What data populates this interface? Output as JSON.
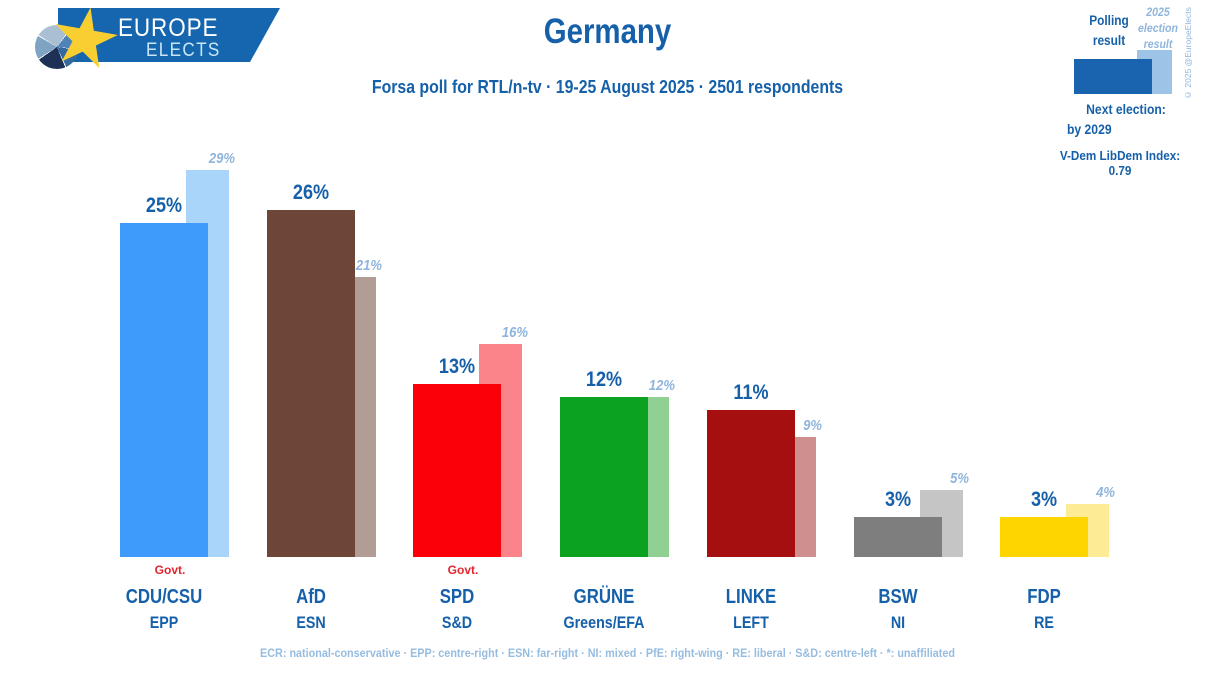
{
  "header": {
    "logo": {
      "line1": "EUROPE",
      "line2": "ELECTS"
    },
    "title": "Germany",
    "subtitle": "Forsa poll for RTL/n-tv · 19-25 August 2025 · 2501 respondents"
  },
  "legend": {
    "polling_label": "Polling result",
    "election_label": "2025 election result",
    "copyright": "© 2025 @EuropeElects",
    "next_election_label": "Next election:",
    "next_election_value": "by 2029",
    "vdem": "V-Dem LibDem Index: 0.79",
    "polling_color": "#1a63ae",
    "election_color": "#9dc4e6"
  },
  "chart_data": {
    "type": "bar",
    "title": "Germany",
    "subtitle": "Forsa poll for RTL/n-tv · 19-25 August 2025 · 2501 respondents",
    "unit": "%",
    "ylim": [
      0,
      29
    ],
    "grid": false,
    "legend_position": "top-right",
    "govt_label": "Govt.",
    "categories": [
      "CDU/CSU",
      "AfD",
      "SPD",
      "GRÜNE",
      "LINKE",
      "BSW",
      "FDP"
    ],
    "series": [
      {
        "name": "Polling result",
        "values": [
          25,
          26,
          13,
          12,
          11,
          3,
          3
        ]
      },
      {
        "name": "2025 election result",
        "values": [
          29,
          21,
          16,
          12,
          9,
          5,
          4
        ]
      }
    ],
    "groups": [
      {
        "party": "CDU/CSU",
        "eu_group": "EPP",
        "govt": true,
        "poll": 25,
        "election": 29,
        "poll_display": "25%",
        "election_display": "29%",
        "bar_color": "#3e9bfb",
        "election_bar_color": "#aad5fb"
      },
      {
        "party": "AfD",
        "eu_group": "ESN",
        "govt": false,
        "poll": 26,
        "election": 21,
        "poll_display": "26%",
        "election_display": "21%",
        "bar_color": "#6e4638",
        "election_bar_color": "#b29d95"
      },
      {
        "party": "SPD",
        "eu_group": "S&D",
        "govt": true,
        "poll": 13,
        "election": 16,
        "poll_display": "13%",
        "election_display": "16%",
        "bar_color": "#fb0009",
        "election_bar_color": "#fb838a"
      },
      {
        "party": "GRÜNE",
        "eu_group": "Greens/EFA",
        "govt": false,
        "poll": 12,
        "election": 12,
        "poll_display": "12%",
        "election_display": "12%",
        "bar_color": "#0ba121",
        "election_bar_color": "#90d092"
      },
      {
        "party": "LINKE",
        "eu_group": "LEFT",
        "govt": false,
        "poll": 11,
        "election": 9,
        "poll_display": "11%",
        "election_display": "9%",
        "bar_color": "#a60f10",
        "election_bar_color": "#cf8f8f"
      },
      {
        "party": "BSW",
        "eu_group": "NI",
        "govt": false,
        "poll": 3,
        "election": 5,
        "poll_display": "3%",
        "election_display": "5%",
        "bar_color": "#7e7e7e",
        "election_bar_color": "#c5c5c5"
      },
      {
        "party": "FDP",
        "eu_group": "RE",
        "govt": false,
        "poll": 3,
        "election": 4,
        "poll_display": "3%",
        "election_display": "4%",
        "bar_color": "#ffd500",
        "election_bar_color": "#fdeb96"
      }
    ]
  },
  "footer": {
    "text": "ECR: national-conservative · EPP: centre-right · ESN: far-right · NI: mixed · PfE: right-wing · RE: liberal · S&D: centre-left · *: unaffiliated"
  }
}
